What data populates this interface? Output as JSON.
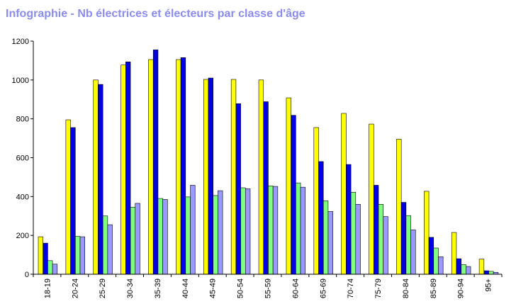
{
  "chart_data": {
    "type": "bar",
    "title": "Infographie - Nb électrices et électeurs par classe d'âge",
    "xlabel": "",
    "ylabel": "",
    "ylim": [
      0,
      1200
    ],
    "yticks": [
      "0",
      "200",
      "400",
      "600",
      "800",
      "1000",
      "1200"
    ],
    "categories": [
      "18-19",
      "20-24",
      "25-29",
      "30-34",
      "35-39",
      "40-44",
      "45-49",
      "50-54",
      "55-59",
      "60-64",
      "65-69",
      "70-74",
      "75-79",
      "80-84",
      "85-89",
      "90-94",
      "95+"
    ],
    "series": [
      {
        "values": [
          193,
          795,
          1000,
          1077,
          1105,
          1105,
          1003,
          1003,
          1000,
          908,
          755,
          828,
          773,
          695,
          427,
          215,
          78
        ],
        "color": "#ffff00"
      },
      {
        "values": [
          160,
          755,
          977,
          1093,
          1155,
          1115,
          1010,
          878,
          888,
          818,
          580,
          565,
          458,
          370,
          190,
          80,
          18
        ],
        "color": "#0000e6"
      },
      {
        "values": [
          70,
          195,
          300,
          345,
          390,
          398,
          405,
          445,
          455,
          470,
          378,
          422,
          360,
          302,
          135,
          50,
          15
        ],
        "color": "#80ff80"
      },
      {
        "values": [
          52,
          193,
          255,
          365,
          385,
          458,
          430,
          440,
          452,
          448,
          323,
          360,
          297,
          228,
          90,
          40,
          10
        ],
        "color": "#9999ff"
      }
    ],
    "legend": "none",
    "grid": false
  }
}
